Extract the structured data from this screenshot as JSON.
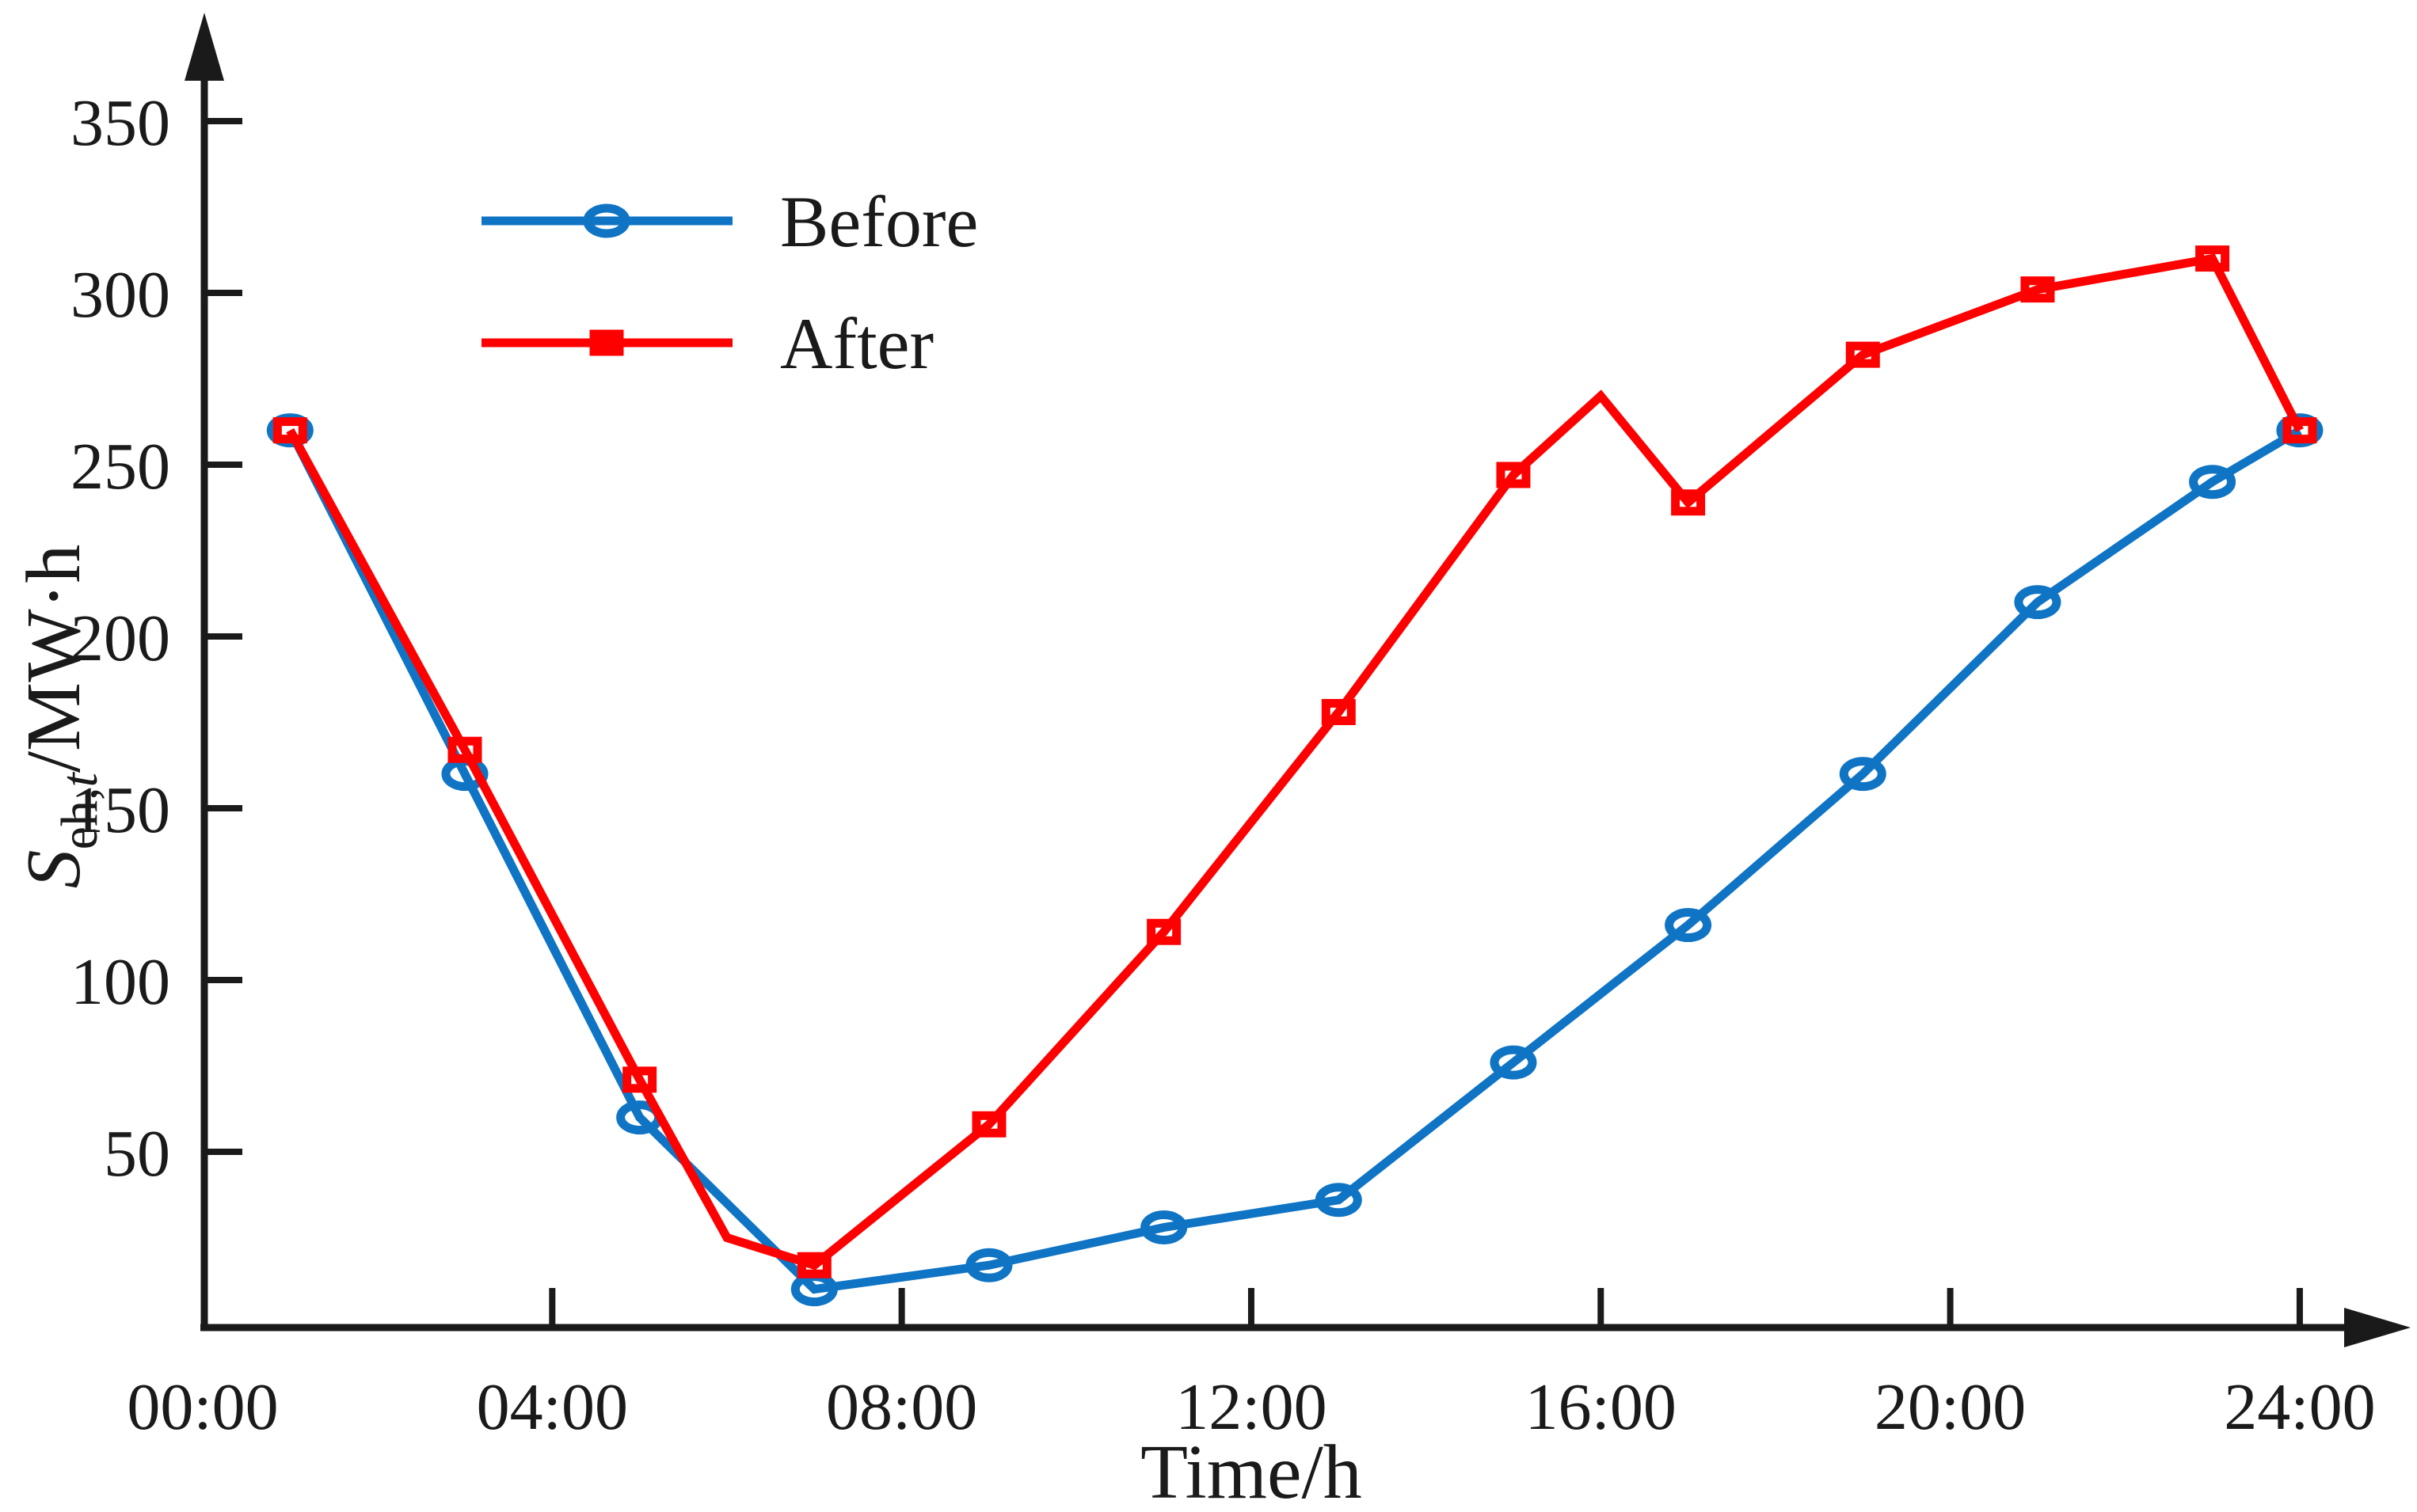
{
  "figure": {
    "background": "#ffffff",
    "text_color": "#1a1a1a",
    "axis_color": "#1a1a1a"
  },
  "axes": {
    "x": {
      "title": "Time/h",
      "tick_hours": [
        0,
        4,
        8,
        12,
        16,
        20,
        24
      ],
      "tick_labels": [
        "00:00",
        "04:00",
        "08:00",
        "12:00",
        "16:00",
        "20:00",
        "24:00"
      ]
    },
    "y": {
      "title_main": "S",
      "title_subscript": "eh,",
      "title_subscript_italic": "t",
      "title_rest": "/MW·h",
      "ticks": [
        50,
        100,
        150,
        200,
        250,
        300,
        350
      ],
      "tick_labels": [
        "50",
        "100",
        "150",
        "200",
        "250",
        "300",
        "350"
      ]
    }
  },
  "legend": {
    "items": [
      {
        "label": "Before",
        "color": "#0f74c4",
        "marker": "ellipse"
      },
      {
        "label": "After",
        "color": "#fe0000",
        "marker": "square"
      }
    ]
  },
  "chart_data": {
    "type": "line",
    "title": "",
    "xlabel": "Time/h",
    "ylabel": "S_eh,t /MW·h",
    "x_unit": "hour-of-day",
    "xlim_hours": [
      0,
      24
    ],
    "ylim": [
      0,
      380
    ],
    "grid": false,
    "legend_position": "upper-left-inside",
    "series": [
      {
        "name": "Before",
        "color": "#0f74c4",
        "marker": "circle",
        "x": [
          1,
          3,
          5,
          7,
          9,
          11,
          13,
          15,
          17,
          19,
          21,
          23,
          24
        ],
        "y": [
          260,
          160,
          60,
          10,
          17,
          28,
          36,
          76,
          116,
          160,
          210,
          245,
          260
        ],
        "marker_x": [
          1,
          3,
          5,
          7,
          9,
          11,
          13,
          15,
          17,
          19,
          21,
          23,
          24
        ]
      },
      {
        "name": "After",
        "color": "#fe0000",
        "marker": "square",
        "x": [
          1,
          3,
          5,
          6,
          7,
          9,
          11,
          13,
          15,
          16,
          17,
          19,
          21,
          23,
          24
        ],
        "y": [
          260,
          167,
          71,
          25,
          17,
          58,
          114,
          178,
          247,
          270,
          239,
          282,
          301,
          310,
          260
        ],
        "marker_x": [
          1,
          3,
          5,
          7,
          9,
          11,
          13,
          15,
          17,
          19,
          21,
          23,
          24
        ]
      }
    ]
  }
}
